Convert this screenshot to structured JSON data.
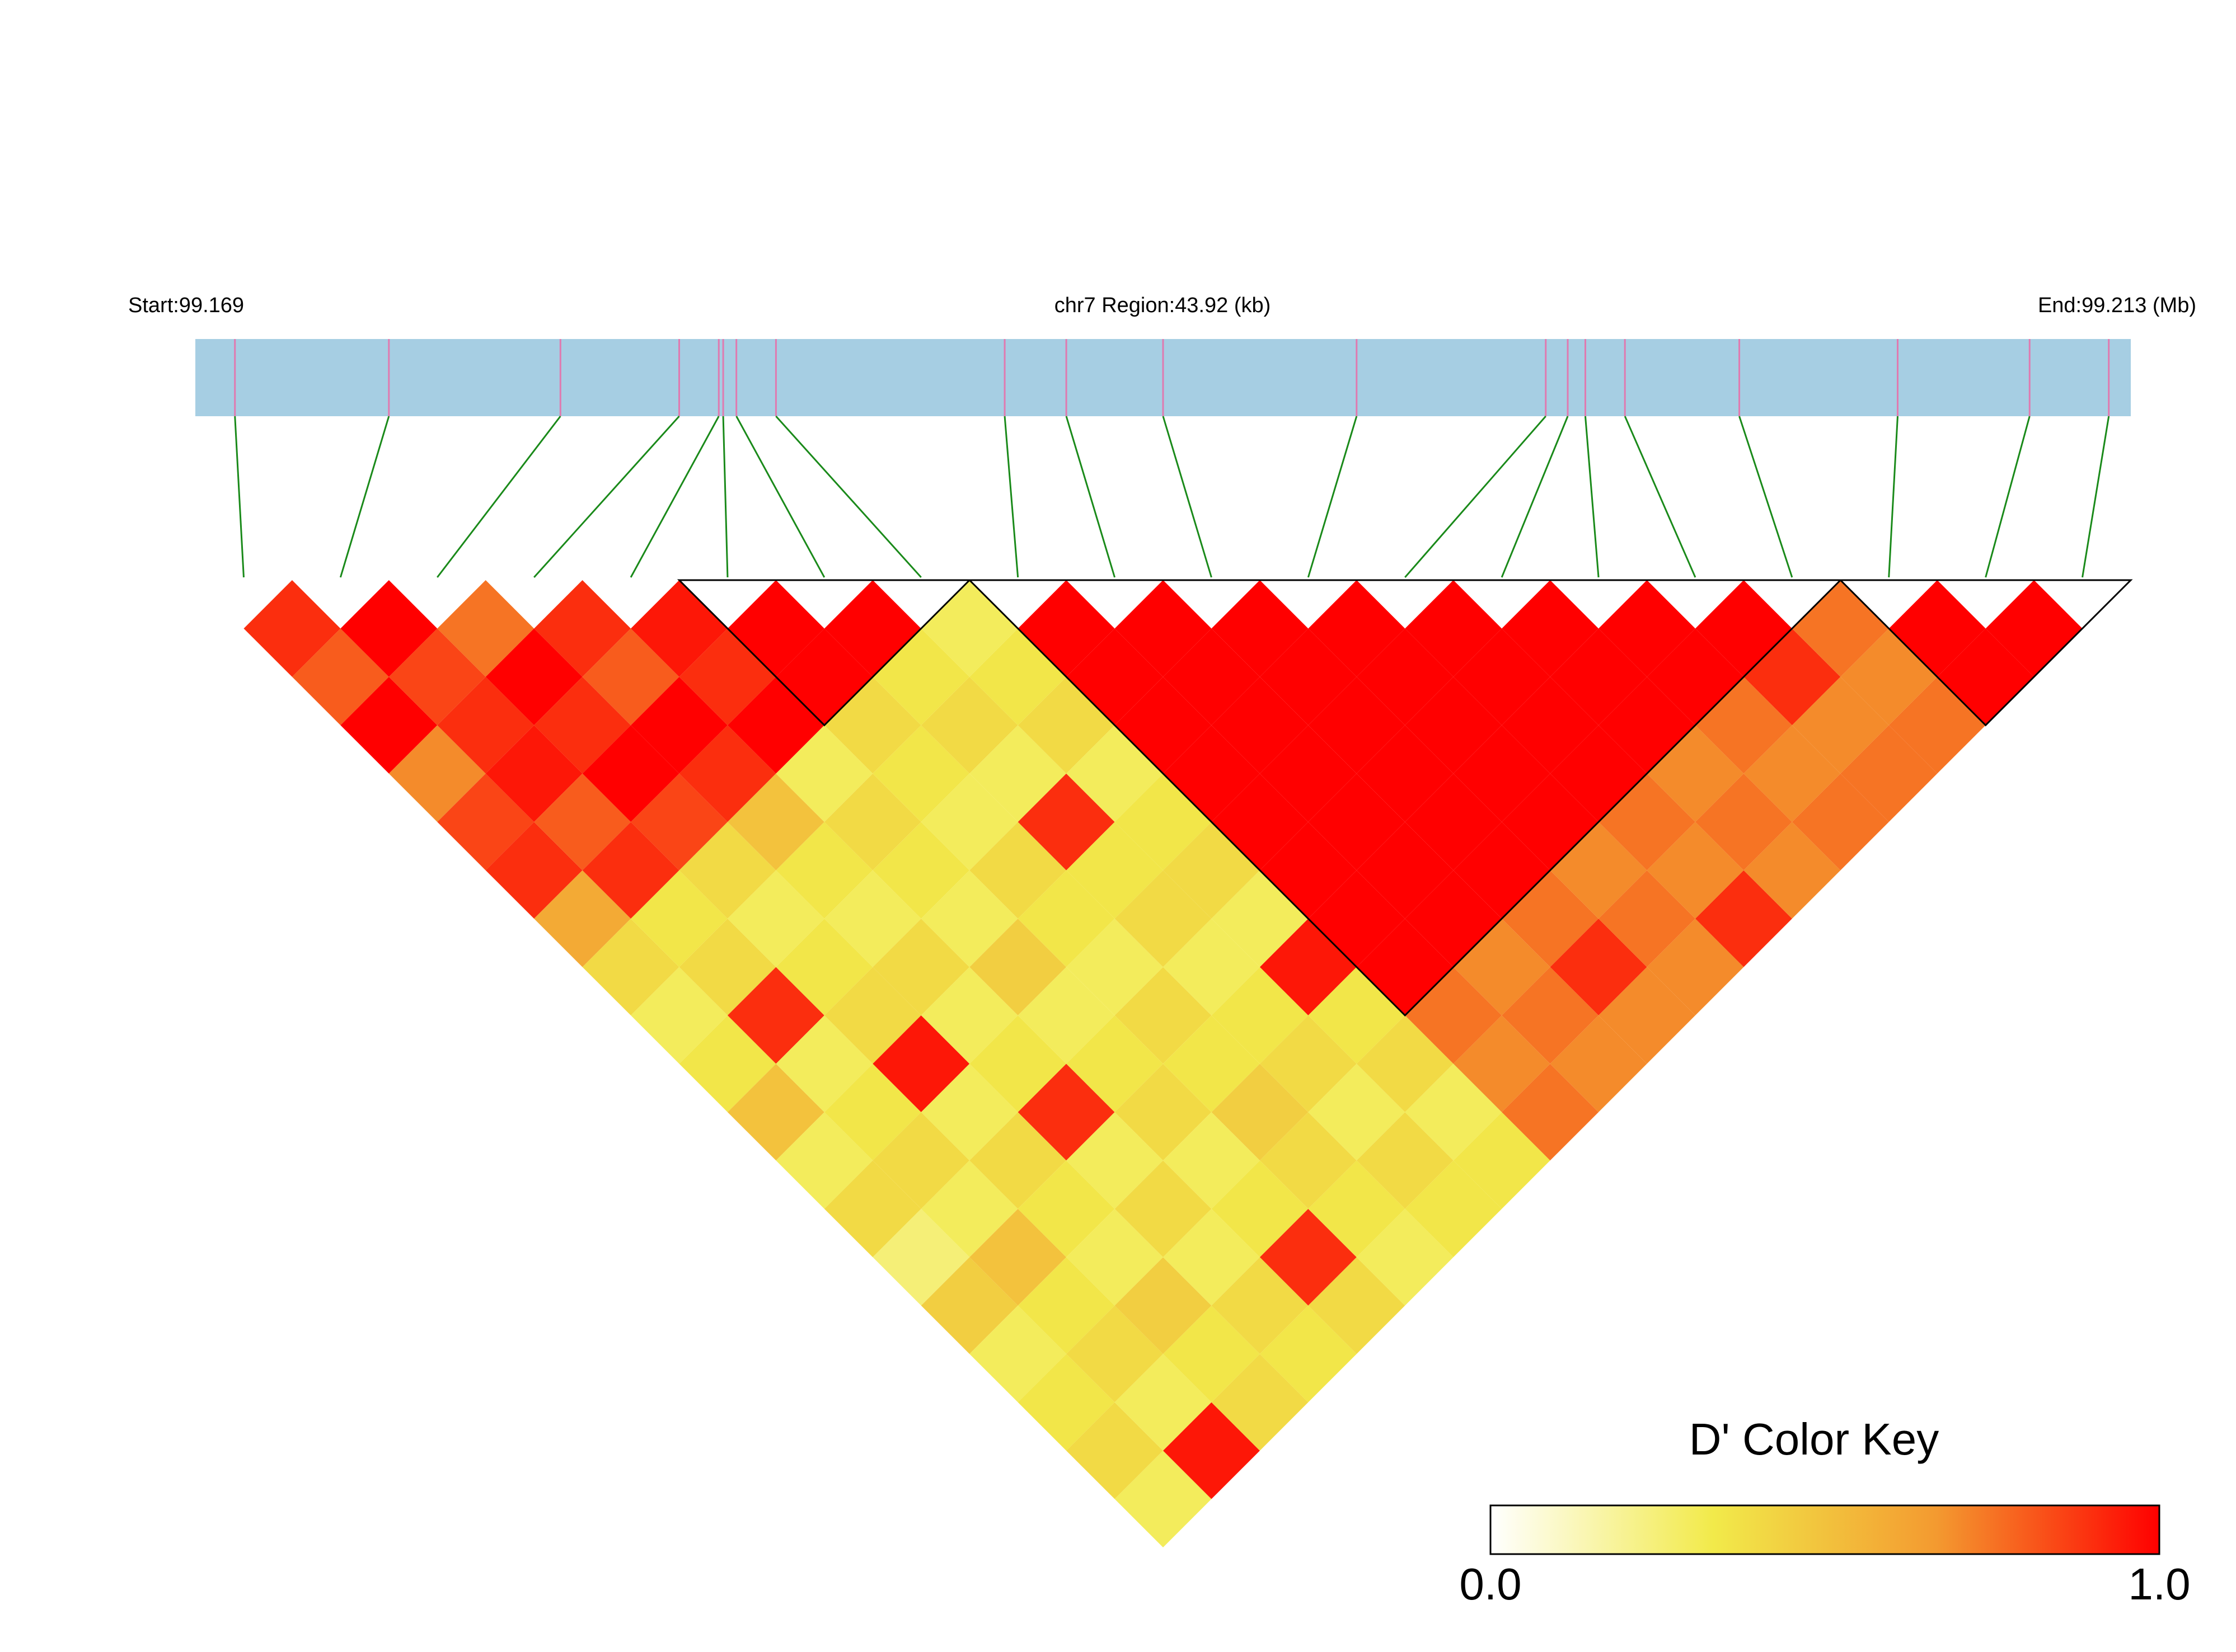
{
  "chart_data": {
    "type": "ld_heatmap",
    "title": "chr7 Region:43.92 (kb)",
    "region": [
      {
        "value": 99.169,
        "label": "Start:99.169"
      },
      {
        "value": 99.213,
        "label": "End:99.213 (Mb)"
      }
    ],
    "snp_positions": [
      99.1699,
      99.1734,
      99.1773,
      99.18,
      99.1809,
      99.181,
      99.1813,
      99.1822,
      99.1874,
      99.1888,
      99.191,
      99.1954,
      99.1997,
      99.2002,
      99.2006,
      99.2015,
      99.2041,
      99.2077,
      99.2107,
      99.2125
    ],
    "matrix": [
      [
        0.9,
        0.8,
        1.0,
        0.7,
        0.85,
        0.9,
        0.6,
        0.4,
        0.3,
        0.35,
        0.5,
        0.3,
        0.4,
        0.25,
        0.45,
        0.3,
        0.35,
        0.4,
        0.3
      ],
      [
        1.0,
        0.85,
        0.9,
        0.95,
        0.8,
        0.9,
        0.35,
        0.4,
        0.9,
        0.3,
        0.35,
        0.4,
        0.3,
        0.5,
        0.35,
        0.4,
        0.3,
        0.95
      ],
      [
        0.75,
        1.0,
        0.9,
        1.0,
        0.85,
        0.4,
        0.3,
        0.35,
        0.4,
        0.95,
        0.3,
        0.4,
        0.35,
        0.3,
        0.45,
        0.35,
        0.4
      ],
      [
        0.9,
        0.8,
        1.0,
        0.9,
        0.5,
        0.35,
        0.3,
        0.4,
        0.3,
        0.35,
        0.9,
        0.3,
        0.4,
        0.3,
        0.4,
        0.35
      ],
      [
        0.95,
        0.9,
        1.0,
        0.3,
        0.4,
        0.35,
        0.3,
        0.45,
        0.3,
        0.35,
        0.4,
        0.3,
        0.35,
        0.9,
        0.4
      ],
      [
        1.0,
        1.0,
        0.4,
        0.35,
        0.3,
        0.4,
        0.35,
        0.3,
        0.4,
        0.35,
        0.45,
        0.4,
        0.35,
        0.3
      ],
      [
        1.0,
        0.35,
        0.4,
        0.3,
        0.9,
        0.35,
        0.4,
        0.3,
        0.35,
        0.4,
        0.3,
        0.4,
        0.35
      ],
      [
        0.3,
        0.35,
        0.4,
        0.3,
        0.35,
        0.4,
        0.3,
        0.95,
        0.35,
        0.4,
        0.3,
        0.35
      ],
      [
        1.0,
        1.0,
        1.0,
        1.0,
        1.0,
        1.0,
        1.0,
        1.0,
        0.75,
        0.7,
        0.75
      ],
      [
        1.0,
        1.0,
        1.0,
        1.0,
        1.0,
        1.0,
        1.0,
        0.7,
        0.75,
        0.7
      ],
      [
        1.0,
        1.0,
        1.0,
        1.0,
        1.0,
        1.0,
        0.75,
        0.9,
        0.7
      ],
      [
        1.0,
        1.0,
        1.0,
        1.0,
        1.0,
        0.7,
        0.75,
        0.7
      ],
      [
        1.0,
        1.0,
        1.0,
        1.0,
        0.75,
        0.7,
        0.9
      ],
      [
        1.0,
        1.0,
        1.0,
        0.7,
        0.75,
        0.7
      ],
      [
        1.0,
        1.0,
        0.75,
        0.7,
        0.75
      ],
      [
        1.0,
        0.9,
        0.7,
        0.75
      ],
      [
        0.75,
        0.7,
        0.75
      ],
      [
        1.0,
        1.0
      ],
      [
        1.0
      ]
    ],
    "blocks": [
      [
        5,
        7
      ],
      [
        8,
        16
      ],
      [
        17,
        19
      ]
    ],
    "colorbar_title": "D' Color Key",
    "colorbar_ticks": [
      {
        "value": 0,
        "label": "0.0"
      },
      {
        "value": 1,
        "label": "1.0"
      }
    ],
    "colors": [
      "#ffffff",
      "#f2ea4a",
      "#f39a30",
      "#ff0000"
    ],
    "bar_color": "#a6cee3",
    "snp_color": "#e07ab0",
    "link_color": "#1a8a1a"
  }
}
